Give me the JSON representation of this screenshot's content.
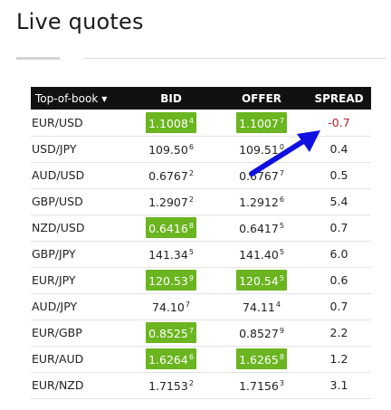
{
  "page": {
    "title": "Live quotes"
  },
  "table": {
    "headers": {
      "pair": "Top-of-book",
      "bid": "BID",
      "offer": "OFFER",
      "spread": "SPREAD"
    },
    "rows": [
      {
        "pair": "EUR/USD",
        "bid_main": "1.1008",
        "bid_pip": "4",
        "bid_highlight": true,
        "offer_main": "1.1007",
        "offer_pip": "7",
        "offer_highlight": true,
        "spread": "-0.7",
        "spread_negative": true
      },
      {
        "pair": "USD/JPY",
        "bid_main": "109.50",
        "bid_pip": "6",
        "bid_highlight": false,
        "offer_main": "109.51",
        "offer_pip": "0",
        "offer_highlight": false,
        "spread": "0.4",
        "spread_negative": false
      },
      {
        "pair": "AUD/USD",
        "bid_main": "0.6767",
        "bid_pip": "2",
        "bid_highlight": false,
        "offer_main": "0.6767",
        "offer_pip": "7",
        "offer_highlight": false,
        "spread": "0.5",
        "spread_negative": false
      },
      {
        "pair": "GBP/USD",
        "bid_main": "1.2907",
        "bid_pip": "2",
        "bid_highlight": false,
        "offer_main": "1.2912",
        "offer_pip": "6",
        "offer_highlight": false,
        "spread": "5.4",
        "spread_negative": false
      },
      {
        "pair": "NZD/USD",
        "bid_main": "0.6416",
        "bid_pip": "8",
        "bid_highlight": true,
        "offer_main": "0.6417",
        "offer_pip": "5",
        "offer_highlight": false,
        "spread": "0.7",
        "spread_negative": false
      },
      {
        "pair": "GBP/JPY",
        "bid_main": "141.34",
        "bid_pip": "5",
        "bid_highlight": false,
        "offer_main": "141.40",
        "offer_pip": "5",
        "offer_highlight": false,
        "spread": "6.0",
        "spread_negative": false
      },
      {
        "pair": "EUR/JPY",
        "bid_main": "120.53",
        "bid_pip": "9",
        "bid_highlight": true,
        "offer_main": "120.54",
        "offer_pip": "5",
        "offer_highlight": true,
        "spread": "0.6",
        "spread_negative": false
      },
      {
        "pair": "AUD/JPY",
        "bid_main": "74.10",
        "bid_pip": "7",
        "bid_highlight": false,
        "offer_main": "74.11",
        "offer_pip": "4",
        "offer_highlight": false,
        "spread": "0.7",
        "spread_negative": false
      },
      {
        "pair": "EUR/GBP",
        "bid_main": "0.8525",
        "bid_pip": "7",
        "bid_highlight": true,
        "offer_main": "0.8527",
        "offer_pip": "9",
        "offer_highlight": false,
        "spread": "2.2",
        "spread_negative": false
      },
      {
        "pair": "EUR/AUD",
        "bid_main": "1.6264",
        "bid_pip": "6",
        "bid_highlight": true,
        "offer_main": "1.6265",
        "offer_pip": "8",
        "offer_highlight": true,
        "spread": "1.2",
        "spread_negative": false
      },
      {
        "pair": "EUR/NZD",
        "bid_main": "1.7153",
        "bid_pip": "2",
        "bid_highlight": false,
        "offer_main": "1.7156",
        "offer_pip": "3",
        "offer_highlight": false,
        "spread": "3.1",
        "spread_negative": false
      }
    ]
  },
  "colors": {
    "highlight_green": "#6ab520",
    "negative_red": "#b5232b",
    "header_black": "#111111",
    "annotation_arrow_blue": "#1010e0"
  },
  "icons": {
    "sort": "caret-down-icon",
    "annotation": "pointer-arrow-icon"
  }
}
